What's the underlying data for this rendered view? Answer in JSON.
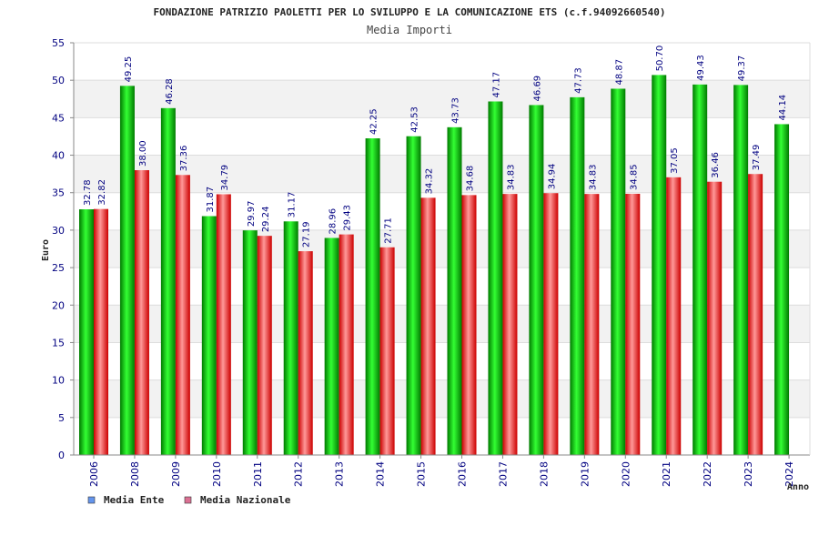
{
  "chart_data": {
    "type": "bar",
    "title": "FONDAZIONE PATRIZIO PAOLETTI PER LO SVILUPPO E LA COMUNICAZIONE ETS (c.f.94092660540)",
    "subtitle": "Media Importi",
    "xlabel": "Anno",
    "ylabel": "Euro",
    "ylim": [
      0,
      55
    ],
    "yticks": [
      "0",
      "5",
      "10",
      "15",
      "20",
      "25",
      "30",
      "35",
      "40",
      "45",
      "50",
      "55"
    ],
    "categories": [
      "2006",
      "2008",
      "2009",
      "2010",
      "2011",
      "2012",
      "2013",
      "2014",
      "2015",
      "2016",
      "2017",
      "2018",
      "2019",
      "2020",
      "2021",
      "2022",
      "2023",
      "2024"
    ],
    "series": [
      {
        "name": "Media Ente",
        "values": [
          32.78,
          49.25,
          46.28,
          31.87,
          29.97,
          31.17,
          28.96,
          42.25,
          42.53,
          43.73,
          47.17,
          46.69,
          47.73,
          48.87,
          50.7,
          49.43,
          49.37,
          44.14
        ],
        "labels": [
          "32.78",
          "49.25",
          "46.28",
          "31.87",
          "29.97",
          "31.17",
          "28.96",
          "42.25",
          "42.53",
          "43.73",
          "47.17",
          "46.69",
          "47.73",
          "48.87",
          "50.70",
          "49.43",
          "49.37",
          "44.14"
        ]
      },
      {
        "name": "Media Nazionale",
        "values": [
          32.82,
          38.0,
          37.36,
          34.79,
          29.24,
          27.19,
          29.43,
          27.71,
          34.32,
          34.68,
          34.83,
          34.94,
          34.83,
          34.85,
          37.05,
          36.46,
          37.49,
          null
        ],
        "labels": [
          "32.82",
          "38.00",
          "37.36",
          "34.79",
          "29.24",
          "27.19",
          "29.43",
          "27.71",
          "34.32",
          "34.68",
          "34.83",
          "34.94",
          "34.83",
          "34.85",
          "37.05",
          "36.46",
          "37.49",
          ""
        ]
      }
    ],
    "legend": {
      "position": "bottom-left",
      "items": [
        {
          "label": "Media Ente",
          "swatch": "#6495ed"
        },
        {
          "label": "Media Nazionale",
          "swatch": "#db7093"
        }
      ]
    },
    "colors": {
      "ente_dark": "#007a00",
      "ente_light": "#33ff33",
      "naz_dark": "#cc0000",
      "naz_light": "#ff9999",
      "band": "#f2f2f2",
      "grid": "#dddddd",
      "axis": "#888888"
    }
  }
}
